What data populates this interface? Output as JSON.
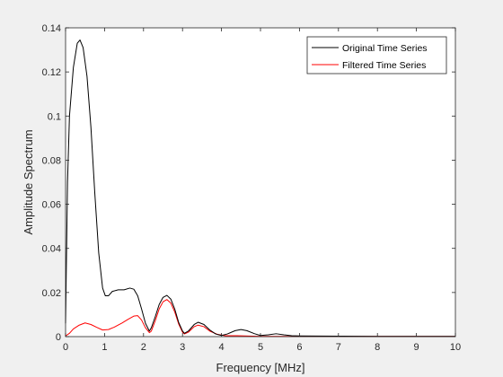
{
  "chart_data": {
    "type": "line",
    "xlabel": "Frequency [MHz]",
    "ylabel": "Amplitude Spectrum",
    "xlim": [
      0,
      10
    ],
    "ylim": [
      0,
      0.14
    ],
    "xticks": [
      0,
      1,
      2,
      3,
      4,
      5,
      6,
      7,
      8,
      9,
      10
    ],
    "yticks": [
      0,
      0.02,
      0.04,
      0.06,
      0.08,
      0.1,
      0.12,
      0.14
    ],
    "xtick_labels": [
      "0",
      "1",
      "2",
      "3",
      "4",
      "5",
      "6",
      "7",
      "8",
      "9",
      "10"
    ],
    "ytick_labels": [
      "0",
      "0.02",
      "0.04",
      "0.06",
      "0.08",
      "0.1",
      "0.12",
      "0.14"
    ],
    "grid": false,
    "legend_position": "top-right",
    "series": [
      {
        "name": "Original Time Series",
        "color": "#000000",
        "points": [
          [
            0,
            0.006
          ],
          [
            0.05,
            0.07
          ],
          [
            0.1,
            0.1
          ],
          [
            0.2,
            0.122
          ],
          [
            0.3,
            0.133
          ],
          [
            0.37,
            0.1345
          ],
          [
            0.45,
            0.131
          ],
          [
            0.55,
            0.118
          ],
          [
            0.65,
            0.095
          ],
          [
            0.75,
            0.065
          ],
          [
            0.85,
            0.038
          ],
          [
            0.95,
            0.022
          ],
          [
            1.02,
            0.0185
          ],
          [
            1.1,
            0.0185
          ],
          [
            1.2,
            0.0205
          ],
          [
            1.35,
            0.0212
          ],
          [
            1.5,
            0.0212
          ],
          [
            1.65,
            0.022
          ],
          [
            1.75,
            0.0215
          ],
          [
            1.85,
            0.0185
          ],
          [
            1.95,
            0.0125
          ],
          [
            2.05,
            0.006
          ],
          [
            2.15,
            0.0025
          ],
          [
            2.2,
            0.004
          ],
          [
            2.3,
            0.009
          ],
          [
            2.4,
            0.0145
          ],
          [
            2.5,
            0.0178
          ],
          [
            2.6,
            0.0187
          ],
          [
            2.7,
            0.017
          ],
          [
            2.8,
            0.0125
          ],
          [
            2.9,
            0.0065
          ],
          [
            3.0,
            0.0025
          ],
          [
            3.05,
            0.0015
          ],
          [
            3.15,
            0.0025
          ],
          [
            3.3,
            0.0055
          ],
          [
            3.4,
            0.0065
          ],
          [
            3.55,
            0.0055
          ],
          [
            3.7,
            0.003
          ],
          [
            3.85,
            0.0012
          ],
          [
            4.0,
            0.0005
          ],
          [
            4.15,
            0.0012
          ],
          [
            4.35,
            0.0027
          ],
          [
            4.5,
            0.0032
          ],
          [
            4.65,
            0.0027
          ],
          [
            4.85,
            0.0013
          ],
          [
            5.0,
            0.0005
          ],
          [
            5.2,
            0.0008
          ],
          [
            5.4,
            0.0013
          ],
          [
            5.6,
            0.0008
          ],
          [
            5.8,
            0.0004
          ],
          [
            6.0,
            0.0003
          ],
          [
            7.0,
            0.0002
          ],
          [
            8.0,
            0.0001
          ],
          [
            9.0,
            0.0001
          ],
          [
            10.0,
            0.0001
          ]
        ]
      },
      {
        "name": "Filtered Time Series",
        "color": "#ff0000",
        "points": [
          [
            0,
            0.0003
          ],
          [
            0.1,
            0.0015
          ],
          [
            0.2,
            0.0035
          ],
          [
            0.35,
            0.0052
          ],
          [
            0.5,
            0.0062
          ],
          [
            0.65,
            0.0055
          ],
          [
            0.8,
            0.0042
          ],
          [
            0.95,
            0.003
          ],
          [
            1.1,
            0.0032
          ],
          [
            1.25,
            0.0043
          ],
          [
            1.45,
            0.0062
          ],
          [
            1.6,
            0.0078
          ],
          [
            1.75,
            0.0093
          ],
          [
            1.85,
            0.0095
          ],
          [
            1.95,
            0.0075
          ],
          [
            2.05,
            0.004
          ],
          [
            2.15,
            0.0018
          ],
          [
            2.2,
            0.0025
          ],
          [
            2.3,
            0.0072
          ],
          [
            2.4,
            0.0125
          ],
          [
            2.5,
            0.0158
          ],
          [
            2.6,
            0.0168
          ],
          [
            2.7,
            0.0152
          ],
          [
            2.8,
            0.0112
          ],
          [
            2.9,
            0.0058
          ],
          [
            3.0,
            0.002
          ],
          [
            3.05,
            0.0012
          ],
          [
            3.15,
            0.002
          ],
          [
            3.3,
            0.0045
          ],
          [
            3.4,
            0.0052
          ],
          [
            3.55,
            0.0045
          ],
          [
            3.7,
            0.0025
          ],
          [
            3.9,
            0.001
          ],
          [
            4.1,
            0.0004
          ],
          [
            4.4,
            0.0004
          ],
          [
            4.6,
            0.0003
          ],
          [
            5.0,
            0.0001
          ],
          [
            6.0,
            0.0001
          ],
          [
            10.0,
            0.0001
          ]
        ]
      }
    ]
  }
}
